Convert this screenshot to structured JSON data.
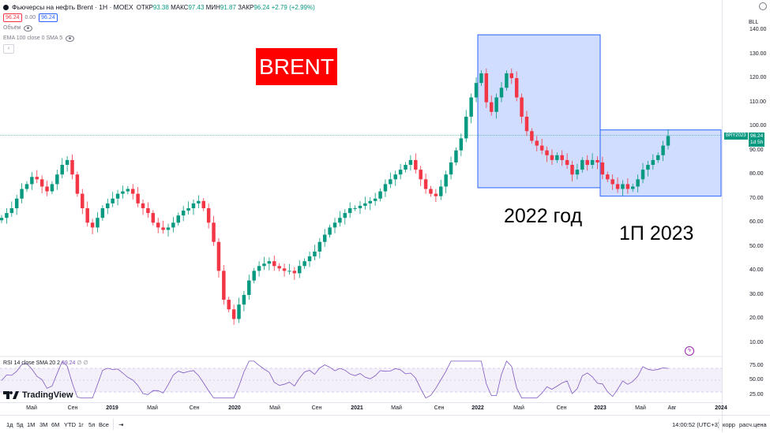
{
  "legend": {
    "symbol": "Фьючерсы на нефть Brent · 1H · MOEX",
    "open_label": "ОТКР",
    "open": "93.38",
    "high_label": "МАКС",
    "high": "97.43",
    "low_label": "МИН",
    "low": "91.87",
    "close_label": "ЗАКР",
    "close": "96.24",
    "change": "+2.79 (+2.99%)",
    "sell": "96.24",
    "spread": "0.00",
    "buy": "96.24",
    "volume": "Объём",
    "ema": "EMA 100 close 0 SMA 5"
  },
  "annotations": {
    "brent": "BRENT",
    "year2022": "2022 год",
    "half2023": "1П 2023"
  },
  "price_axis": {
    "unit": "BLL",
    "ticks": [
      "140.00",
      "130.00",
      "120.00",
      "110.00",
      "100.00",
      "90.00",
      "80.00",
      "70.00",
      "60.00",
      "50.00",
      "40.00",
      "30.00",
      "20.00",
      "10.00"
    ],
    "current_symbol": "BRY2023",
    "current_price": "96.24",
    "countdown": "1d 5h"
  },
  "rsi": {
    "label": "RSI 14 close SMA 20 2",
    "value": "69.24",
    "extra": "∅ ∅",
    "ticks": [
      "75.00",
      "50.00",
      "25.00"
    ]
  },
  "brand": "TradingView",
  "time_axis": [
    "Май",
    "Сен",
    "2019",
    "Май",
    "Сен",
    "2020",
    "Май",
    "Сен",
    "2021",
    "Май",
    "Сен",
    "2022",
    "Май",
    "Сен",
    "2023",
    "Май",
    "Авг",
    "2024"
  ],
  "toolbar": {
    "ranges": [
      "1д",
      "5д",
      "1М",
      "3М",
      "6М",
      "YTD",
      "1г",
      "5л",
      "Все"
    ],
    "clock": "14:00:52 (UTC+3)",
    "adj": "корр",
    "settlement": "расч.цена"
  },
  "chart_data": {
    "type": "candlestick",
    "ylim": [
      10,
      140
    ],
    "ticks_y": [
      10,
      20,
      30,
      40,
      50,
      60,
      70,
      80,
      90,
      100,
      110,
      120,
      130,
      140
    ],
    "rsi_ylim": [
      20,
      80
    ],
    "rsi_bands": [
      30,
      70
    ],
    "x_labels": [
      "Май",
      "Сен",
      "2019",
      "Май",
      "Сен",
      "2020",
      "Май",
      "Сен",
      "2021",
      "Май",
      "Сен",
      "2022",
      "Май",
      "Сен",
      "2023",
      "Май",
      "Авг",
      "2024"
    ],
    "close_series": [
      62,
      64,
      66,
      70,
      74,
      76,
      79,
      78,
      75,
      73,
      76,
      80,
      84,
      86,
      80,
      72,
      66,
      60,
      58,
      62,
      66,
      68,
      70,
      72,
      73,
      74,
      72,
      68,
      66,
      64,
      60,
      58,
      57,
      58,
      60,
      63,
      65,
      66,
      68,
      69,
      66,
      60,
      52,
      40,
      28,
      24,
      20,
      26,
      30,
      36,
      40,
      42,
      43,
      44,
      42,
      41,
      40,
      40,
      39,
      42,
      44,
      46,
      48,
      52,
      55,
      58,
      60,
      62,
      64,
      66,
      66,
      67,
      68,
      69,
      70,
      73,
      76,
      78,
      80,
      82,
      84,
      86,
      82,
      78,
      74,
      72,
      71,
      75,
      80,
      85,
      90,
      95,
      104,
      112,
      118,
      122,
      110,
      106,
      112,
      116,
      122,
      120,
      112,
      104,
      98,
      94,
      92,
      90,
      88,
      86,
      88,
      86,
      84,
      80,
      82,
      86,
      84,
      86,
      85,
      80,
      78,
      76,
      74,
      76,
      74,
      75,
      78,
      82,
      84,
      86,
      88,
      92,
      96
    ],
    "boxes": [
      {
        "label": "2022 год",
        "x_from": "2022",
        "y_from": 74.5,
        "y_to": 138
      },
      {
        "label": "1П 2023",
        "x_from": "2023",
        "y_from": 71,
        "y_to": 98.5
      }
    ],
    "current": 96.24
  }
}
